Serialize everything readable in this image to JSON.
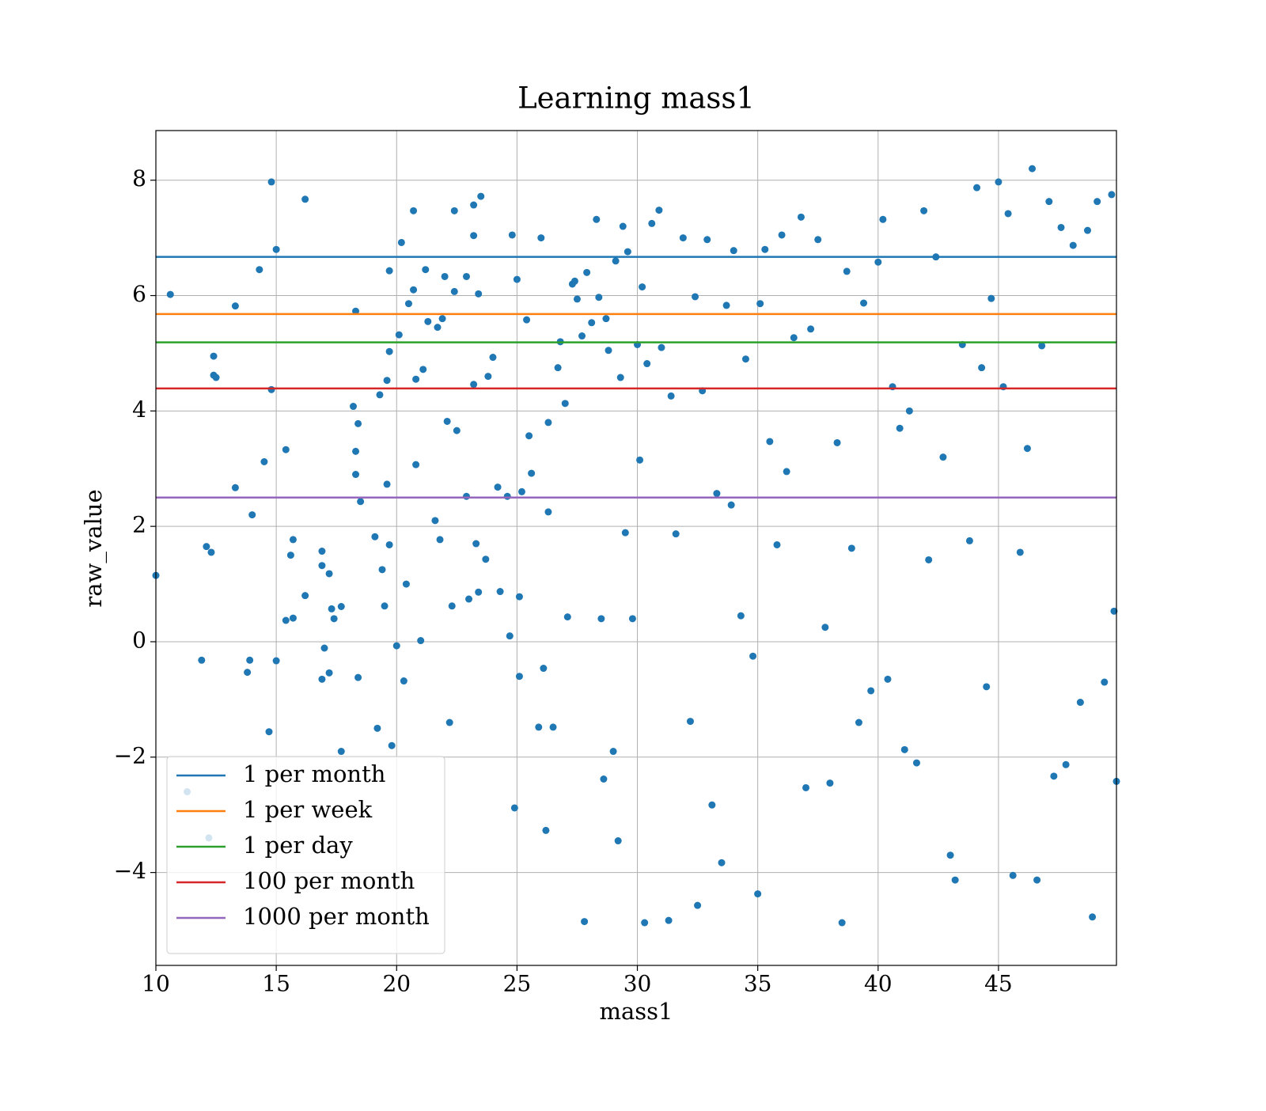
{
  "chart_data": {
    "type": "scatter",
    "title": "Learning mass1",
    "xlabel": "mass1",
    "ylabel": "raw_value",
    "color": "#1f77b4",
    "grid": true,
    "legend": "lower left",
    "xlim": [
      10,
      49.9
    ],
    "ylim": [
      -5.61,
      8.86
    ],
    "xticks": [
      10,
      15,
      20,
      25,
      30,
      35,
      40,
      45
    ],
    "yticks": [
      {
        "value": -4,
        "label": "−4"
      },
      {
        "value": -2,
        "label": "−2"
      },
      0,
      2,
      4,
      6,
      8
    ],
    "hlines": [
      {
        "name": "1 per month",
        "color": "#1f77b4",
        "y": 6.67
      },
      {
        "name": "1 per week",
        "color": "#ff7f0e",
        "y": 5.68
      },
      {
        "name": "1 per day",
        "color": "#2ca02c",
        "y": 5.19
      },
      {
        "name": "100 per month",
        "color": "#d62728",
        "y": 4.39
      },
      {
        "name": "1000 per month",
        "color": "#9467bd",
        "y": 2.5
      }
    ],
    "x": [
      10.0,
      10.6,
      11.3,
      11.9,
      12.1,
      12.2,
      12.3,
      12.4,
      12.4,
      12.5,
      13.3,
      13.3,
      13.8,
      13.9,
      14.0,
      14.3,
      14.5,
      14.7,
      14.8,
      14.8,
      15.0,
      15.0,
      15.4,
      15.4,
      15.6,
      15.7,
      15.7,
      16.2,
      16.2,
      16.9,
      16.9,
      16.9,
      17.0,
      17.2,
      17.2,
      17.3,
      17.4,
      17.7,
      17.7,
      18.2,
      18.3,
      18.3,
      18.3,
      18.4,
      18.4,
      18.5,
      19.1,
      19.2,
      19.3,
      19.4,
      19.5,
      19.6,
      19.6,
      19.7,
      19.7,
      19.7,
      19.8,
      20.0,
      20.1,
      20.2,
      20.3,
      20.4,
      20.5,
      20.7,
      20.7,
      20.8,
      20.8,
      21.0,
      21.1,
      21.2,
      21.3,
      21.6,
      21.7,
      21.8,
      21.9,
      22.0,
      22.1,
      22.2,
      22.3,
      22.4,
      22.4,
      22.5,
      22.9,
      22.9,
      23.0,
      23.2,
      23.2,
      23.2,
      23.3,
      23.4,
      23.4,
      23.5,
      23.7,
      23.8,
      24.0,
      24.2,
      24.3,
      24.6,
      24.7,
      24.8,
      24.9,
      25.0,
      25.1,
      25.1,
      25.2,
      25.4,
      25.5,
      25.6,
      25.9,
      26.0,
      26.1,
      26.2,
      26.3,
      26.3,
      26.5,
      26.7,
      26.8,
      27.0,
      27.1,
      27.3,
      27.4,
      27.5,
      27.7,
      27.8,
      27.9,
      28.1,
      28.3,
      28.4,
      28.5,
      28.6,
      28.7,
      28.8,
      29.0,
      29.1,
      29.2,
      29.3,
      29.4,
      29.5,
      29.6,
      29.8,
      30.0,
      30.1,
      30.2,
      30.3,
      30.4,
      30.6,
      30.9,
      31.0,
      31.3,
      31.4,
      31.6,
      31.9,
      32.2,
      32.4,
      32.5,
      32.7,
      32.9,
      33.1,
      33.3,
      33.5,
      33.7,
      33.9,
      34.0,
      34.3,
      34.5,
      34.8,
      35.0,
      35.1,
      35.3,
      35.5,
      35.8,
      36.0,
      36.2,
      36.5,
      36.8,
      37.0,
      37.2,
      37.5,
      37.8,
      38.0,
      38.3,
      38.5,
      38.7,
      38.9,
      39.2,
      39.4,
      39.7,
      40.0,
      40.2,
      40.4,
      40.6,
      40.9,
      41.1,
      41.3,
      41.6,
      41.9,
      42.1,
      42.4,
      42.7,
      43.0,
      43.2,
      43.5,
      43.8,
      44.1,
      44.3,
      44.5,
      44.7,
      45.0,
      45.2,
      45.4,
      45.6,
      45.9,
      46.2,
      46.4,
      46.6,
      46.8,
      47.1,
      47.3,
      47.6,
      47.8,
      48.1,
      48.4,
      48.7,
      48.9,
      49.1,
      49.4,
      49.7,
      49.8,
      49.9
    ],
    "y": [
      1.15,
      6.02,
      -2.6,
      -0.32,
      1.65,
      -3.4,
      1.55,
      4.95,
      4.62,
      4.58,
      5.82,
      2.67,
      -0.53,
      -0.32,
      2.2,
      6.45,
      3.12,
      -1.56,
      7.97,
      4.37,
      6.8,
      -0.33,
      0.37,
      3.33,
      1.5,
      1.77,
      0.41,
      7.67,
      0.8,
      1.57,
      1.32,
      -0.65,
      -0.11,
      1.18,
      -0.54,
      0.57,
      0.4,
      0.61,
      -1.9,
      4.08,
      5.73,
      3.3,
      2.9,
      3.78,
      -0.62,
      2.43,
      1.82,
      -1.5,
      4.28,
      1.25,
      0.62,
      4.53,
      2.73,
      6.43,
      5.03,
      1.68,
      -1.8,
      -0.07,
      5.32,
      6.92,
      -0.68,
      1.0,
      5.86,
      7.47,
      6.1,
      4.55,
      3.07,
      0.02,
      4.72,
      6.45,
      5.55,
      2.1,
      5.45,
      1.77,
      5.6,
      6.33,
      3.82,
      -1.4,
      0.62,
      7.47,
      6.07,
      3.66,
      2.52,
      6.33,
      0.74,
      7.57,
      7.04,
      4.46,
      1.7,
      0.86,
      6.03,
      7.72,
      1.43,
      4.6,
      4.93,
      2.68,
      0.87,
      2.52,
      0.1,
      7.05,
      -2.88,
      6.28,
      0.78,
      -0.6,
      2.6,
      5.58,
      3.57,
      2.92,
      -1.48,
      7.0,
      -0.46,
      -3.27,
      3.8,
      2.25,
      -1.48,
      4.75,
      5.2,
      4.13,
      0.43,
      6.2,
      6.25,
      5.94,
      5.3,
      -4.85,
      6.4,
      5.53,
      7.32,
      5.97,
      0.4,
      -2.38,
      5.6,
      5.05,
      -1.9,
      6.6,
      -3.45,
      4.58,
      7.2,
      1.89,
      6.76,
      0.4,
      5.15,
      3.15,
      6.15,
      -4.87,
      4.82,
      7.25,
      7.48,
      5.1,
      -4.83,
      4.26,
      1.87,
      7.0,
      -1.38,
      5.98,
      -4.57,
      4.35,
      6.97,
      -2.83,
      2.57,
      -3.83,
      5.83,
      2.37,
      6.78,
      0.45,
      4.9,
      -0.25,
      -4.37,
      5.86,
      6.8,
      3.47,
      1.68,
      7.05,
      2.95,
      5.27,
      7.36,
      -2.53,
      5.42,
      6.97,
      0.25,
      -2.45,
      3.45,
      -4.87,
      6.42,
      1.62,
      -1.4,
      5.87,
      -0.85,
      6.58,
      7.32,
      -0.65,
      4.42,
      3.7,
      -1.87,
      4.0,
      -2.1,
      7.47,
      1.42,
      6.67,
      3.2,
      -3.7,
      -4.13,
      5.15,
      1.75,
      7.87,
      4.75,
      -0.78,
      5.95,
      7.97,
      4.42,
      7.42,
      -4.05,
      1.55,
      3.35,
      8.2,
      -4.13,
      5.13,
      7.63,
      -2.33,
      7.18,
      -2.13,
      6.87,
      -1.05,
      7.13,
      -4.77,
      7.63,
      -0.7,
      7.75,
      0.53,
      -2.42
    ]
  }
}
